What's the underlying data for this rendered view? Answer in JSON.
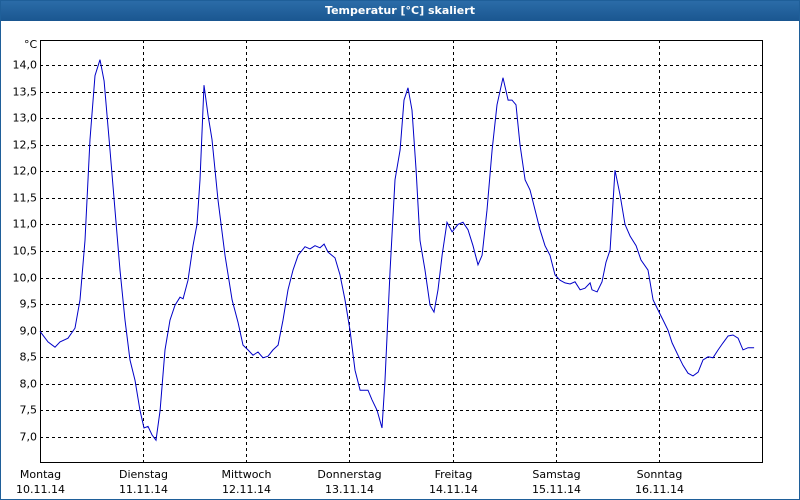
{
  "window_title": "Temperatur [°C] skaliert",
  "chart_data": {
    "type": "line",
    "y_unit": "°C",
    "x": [
      0,
      0.078,
      0.145,
      0.194,
      0.271,
      0.339,
      0.388,
      0.436,
      0.485,
      0.533,
      0.582,
      0.621,
      0.679,
      0.727,
      0.776,
      0.824,
      0.873,
      0.921,
      0.97,
      1.008,
      1.047,
      1.086,
      1.125,
      1.164,
      1.212,
      1.26,
      1.309,
      1.357,
      1.387,
      1.435,
      1.483,
      1.522,
      1.551,
      1.59,
      1.629,
      1.668,
      1.726,
      1.794,
      1.862,
      1.92,
      1.968,
      2.017,
      2.065,
      2.114,
      2.162,
      2.211,
      2.259,
      2.308,
      2.356,
      2.404,
      2.453,
      2.502,
      2.569,
      2.618,
      2.666,
      2.715,
      2.754,
      2.792,
      2.86,
      2.909,
      2.957,
      3.006,
      3.054,
      3.103,
      3.18,
      3.219,
      3.268,
      3.316,
      3.345,
      3.394,
      3.442,
      3.491,
      3.529,
      3.568,
      3.607,
      3.646,
      3.684,
      3.733,
      3.781,
      3.82,
      3.859,
      3.898,
      3.946,
      3.995,
      4.053,
      4.101,
      4.15,
      4.198,
      4.247,
      4.286,
      4.334,
      4.383,
      4.431,
      4.489,
      4.538,
      4.576,
      4.615,
      4.654,
      4.703,
      4.751,
      4.8,
      4.848,
      4.896,
      4.945,
      4.993,
      5.042,
      5.09,
      5.139,
      5.187,
      5.236,
      5.284,
      5.333,
      5.352,
      5.401,
      5.449,
      5.488,
      5.527,
      5.575,
      5.624,
      5.672,
      5.721,
      5.779,
      5.827,
      5.895,
      5.944,
      5.992,
      6.041,
      6.089,
      6.128,
      6.186,
      6.234,
      6.283,
      6.331,
      6.38,
      6.428,
      6.477,
      6.525,
      6.574,
      6.622,
      6.671,
      6.719,
      6.768,
      6.816,
      6.865,
      6.923
    ],
    "series": [
      {
        "color": "#0000c8",
        "values": [
          8.99,
          8.79,
          8.69,
          8.79,
          8.86,
          9.05,
          9.58,
          10.7,
          12.6,
          13.8,
          14.1,
          13.7,
          12.4,
          11.27,
          10.14,
          9.2,
          8.45,
          8.07,
          7.5,
          7.17,
          7.2,
          7.04,
          6.94,
          7.5,
          8.64,
          9.2,
          9.48,
          9.63,
          9.6,
          9.95,
          10.6,
          11.0,
          11.84,
          13.62,
          13.06,
          12.6,
          11.46,
          10.42,
          9.58,
          9.16,
          8.73,
          8.64,
          8.54,
          8.6,
          8.49,
          8.52,
          8.64,
          8.73,
          9.2,
          9.77,
          10.14,
          10.42,
          10.58,
          10.54,
          10.6,
          10.56,
          10.63,
          10.48,
          10.37,
          10.05,
          9.58,
          9.01,
          8.26,
          7.88,
          7.88,
          7.7,
          7.5,
          7.17,
          8.07,
          10.14,
          11.84,
          12.4,
          13.34,
          13.57,
          13.15,
          12.02,
          10.7,
          10.14,
          9.48,
          9.35,
          9.77,
          10.42,
          11.04,
          10.86,
          11.0,
          11.04,
          10.9,
          10.6,
          10.24,
          10.42,
          11.27,
          12.4,
          13.25,
          13.76,
          13.34,
          13.34,
          13.25,
          12.5,
          11.84,
          11.65,
          11.27,
          10.9,
          10.6,
          10.42,
          10.05,
          9.95,
          9.9,
          9.88,
          9.92,
          9.77,
          9.8,
          9.9,
          9.77,
          9.73,
          9.92,
          10.29,
          10.52,
          12.02,
          11.55,
          11.0,
          10.78,
          10.6,
          10.33,
          10.14,
          9.58,
          9.39,
          9.2,
          9.01,
          8.77,
          8.54,
          8.35,
          8.2,
          8.15,
          8.22,
          8.45,
          8.51,
          8.49,
          8.64,
          8.77,
          8.9,
          8.92,
          8.86,
          8.64,
          8.68,
          8.68
        ]
      }
    ],
    "xlim": [
      0,
      7
    ],
    "xticks": [
      {
        "value": 0,
        "label": "Montag",
        "date": "10.11.14"
      },
      {
        "value": 1,
        "label": "Dienstag",
        "date": "11.11.14"
      },
      {
        "value": 2,
        "label": "Mittwoch",
        "date": "12.11.14"
      },
      {
        "value": 3,
        "label": "Donnerstag",
        "date": "13.11.14"
      },
      {
        "value": 4,
        "label": "Freitag",
        "date": "14.11.14"
      },
      {
        "value": 5,
        "label": "Samstag",
        "date": "15.11.14"
      },
      {
        "value": 6,
        "label": "Sonntag",
        "date": "16.11.14"
      }
    ],
    "ylim": [
      6.53,
      14.47
    ],
    "yticks": [
      {
        "value": 7,
        "label": "7,0"
      },
      {
        "value": 7.5,
        "label": "7,5"
      },
      {
        "value": 8,
        "label": "8,0"
      },
      {
        "value": 8.5,
        "label": "8,5"
      },
      {
        "value": 9,
        "label": "9,0"
      },
      {
        "value": 9.5,
        "label": "9,5"
      },
      {
        "value": 10,
        "label": "10,0"
      },
      {
        "value": 10.5,
        "label": "10,5"
      },
      {
        "value": 11,
        "label": "11,0"
      },
      {
        "value": 11.5,
        "label": "11,5"
      },
      {
        "value": 12,
        "label": "12,0"
      },
      {
        "value": 12.5,
        "label": "12,5"
      },
      {
        "value": 13,
        "label": "13,0"
      },
      {
        "value": 13.5,
        "label": "13,5"
      },
      {
        "value": 14,
        "label": "14,0"
      }
    ],
    "grid": true
  }
}
